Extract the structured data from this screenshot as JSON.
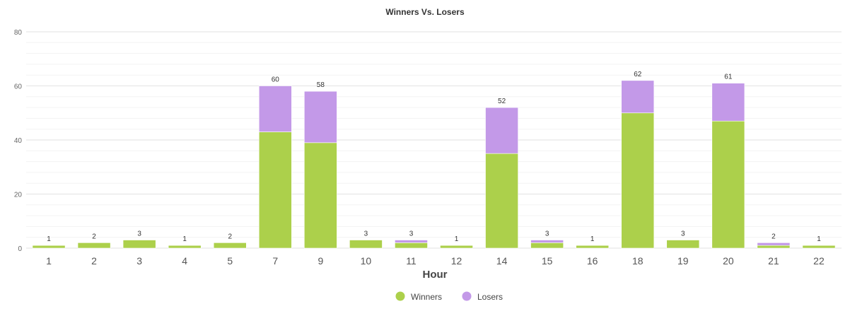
{
  "chart_data": {
    "type": "bar",
    "stacked": true,
    "title": "Winners Vs. Losers",
    "xlabel": "Hour",
    "ylabel": "",
    "ylim": [
      0,
      80
    ],
    "yticks": [
      0,
      20,
      40,
      60,
      80
    ],
    "grid": true,
    "legend": "bottom-center",
    "categories": [
      "1",
      "2",
      "3",
      "4",
      "5",
      "7",
      "9",
      "10",
      "11",
      "12",
      "14",
      "15",
      "16",
      "18",
      "19",
      "20",
      "21",
      "22"
    ],
    "series": [
      {
        "name": "Winners",
        "color": "#acd04b",
        "values": [
          1,
          2,
          3,
          1,
          2,
          43,
          39,
          3,
          2,
          1,
          35,
          2,
          1,
          50,
          3,
          47,
          1,
          1
        ]
      },
      {
        "name": "Losers",
        "color": "#c399e8",
        "values": [
          0,
          0,
          0,
          0,
          0,
          17,
          19,
          0,
          1,
          0,
          17,
          1,
          0,
          12,
          0,
          14,
          1,
          0
        ]
      }
    ],
    "totals": [
      1,
      2,
      3,
      1,
      2,
      60,
      58,
      3,
      3,
      1,
      52,
      3,
      1,
      62,
      3,
      61,
      2,
      1
    ]
  }
}
